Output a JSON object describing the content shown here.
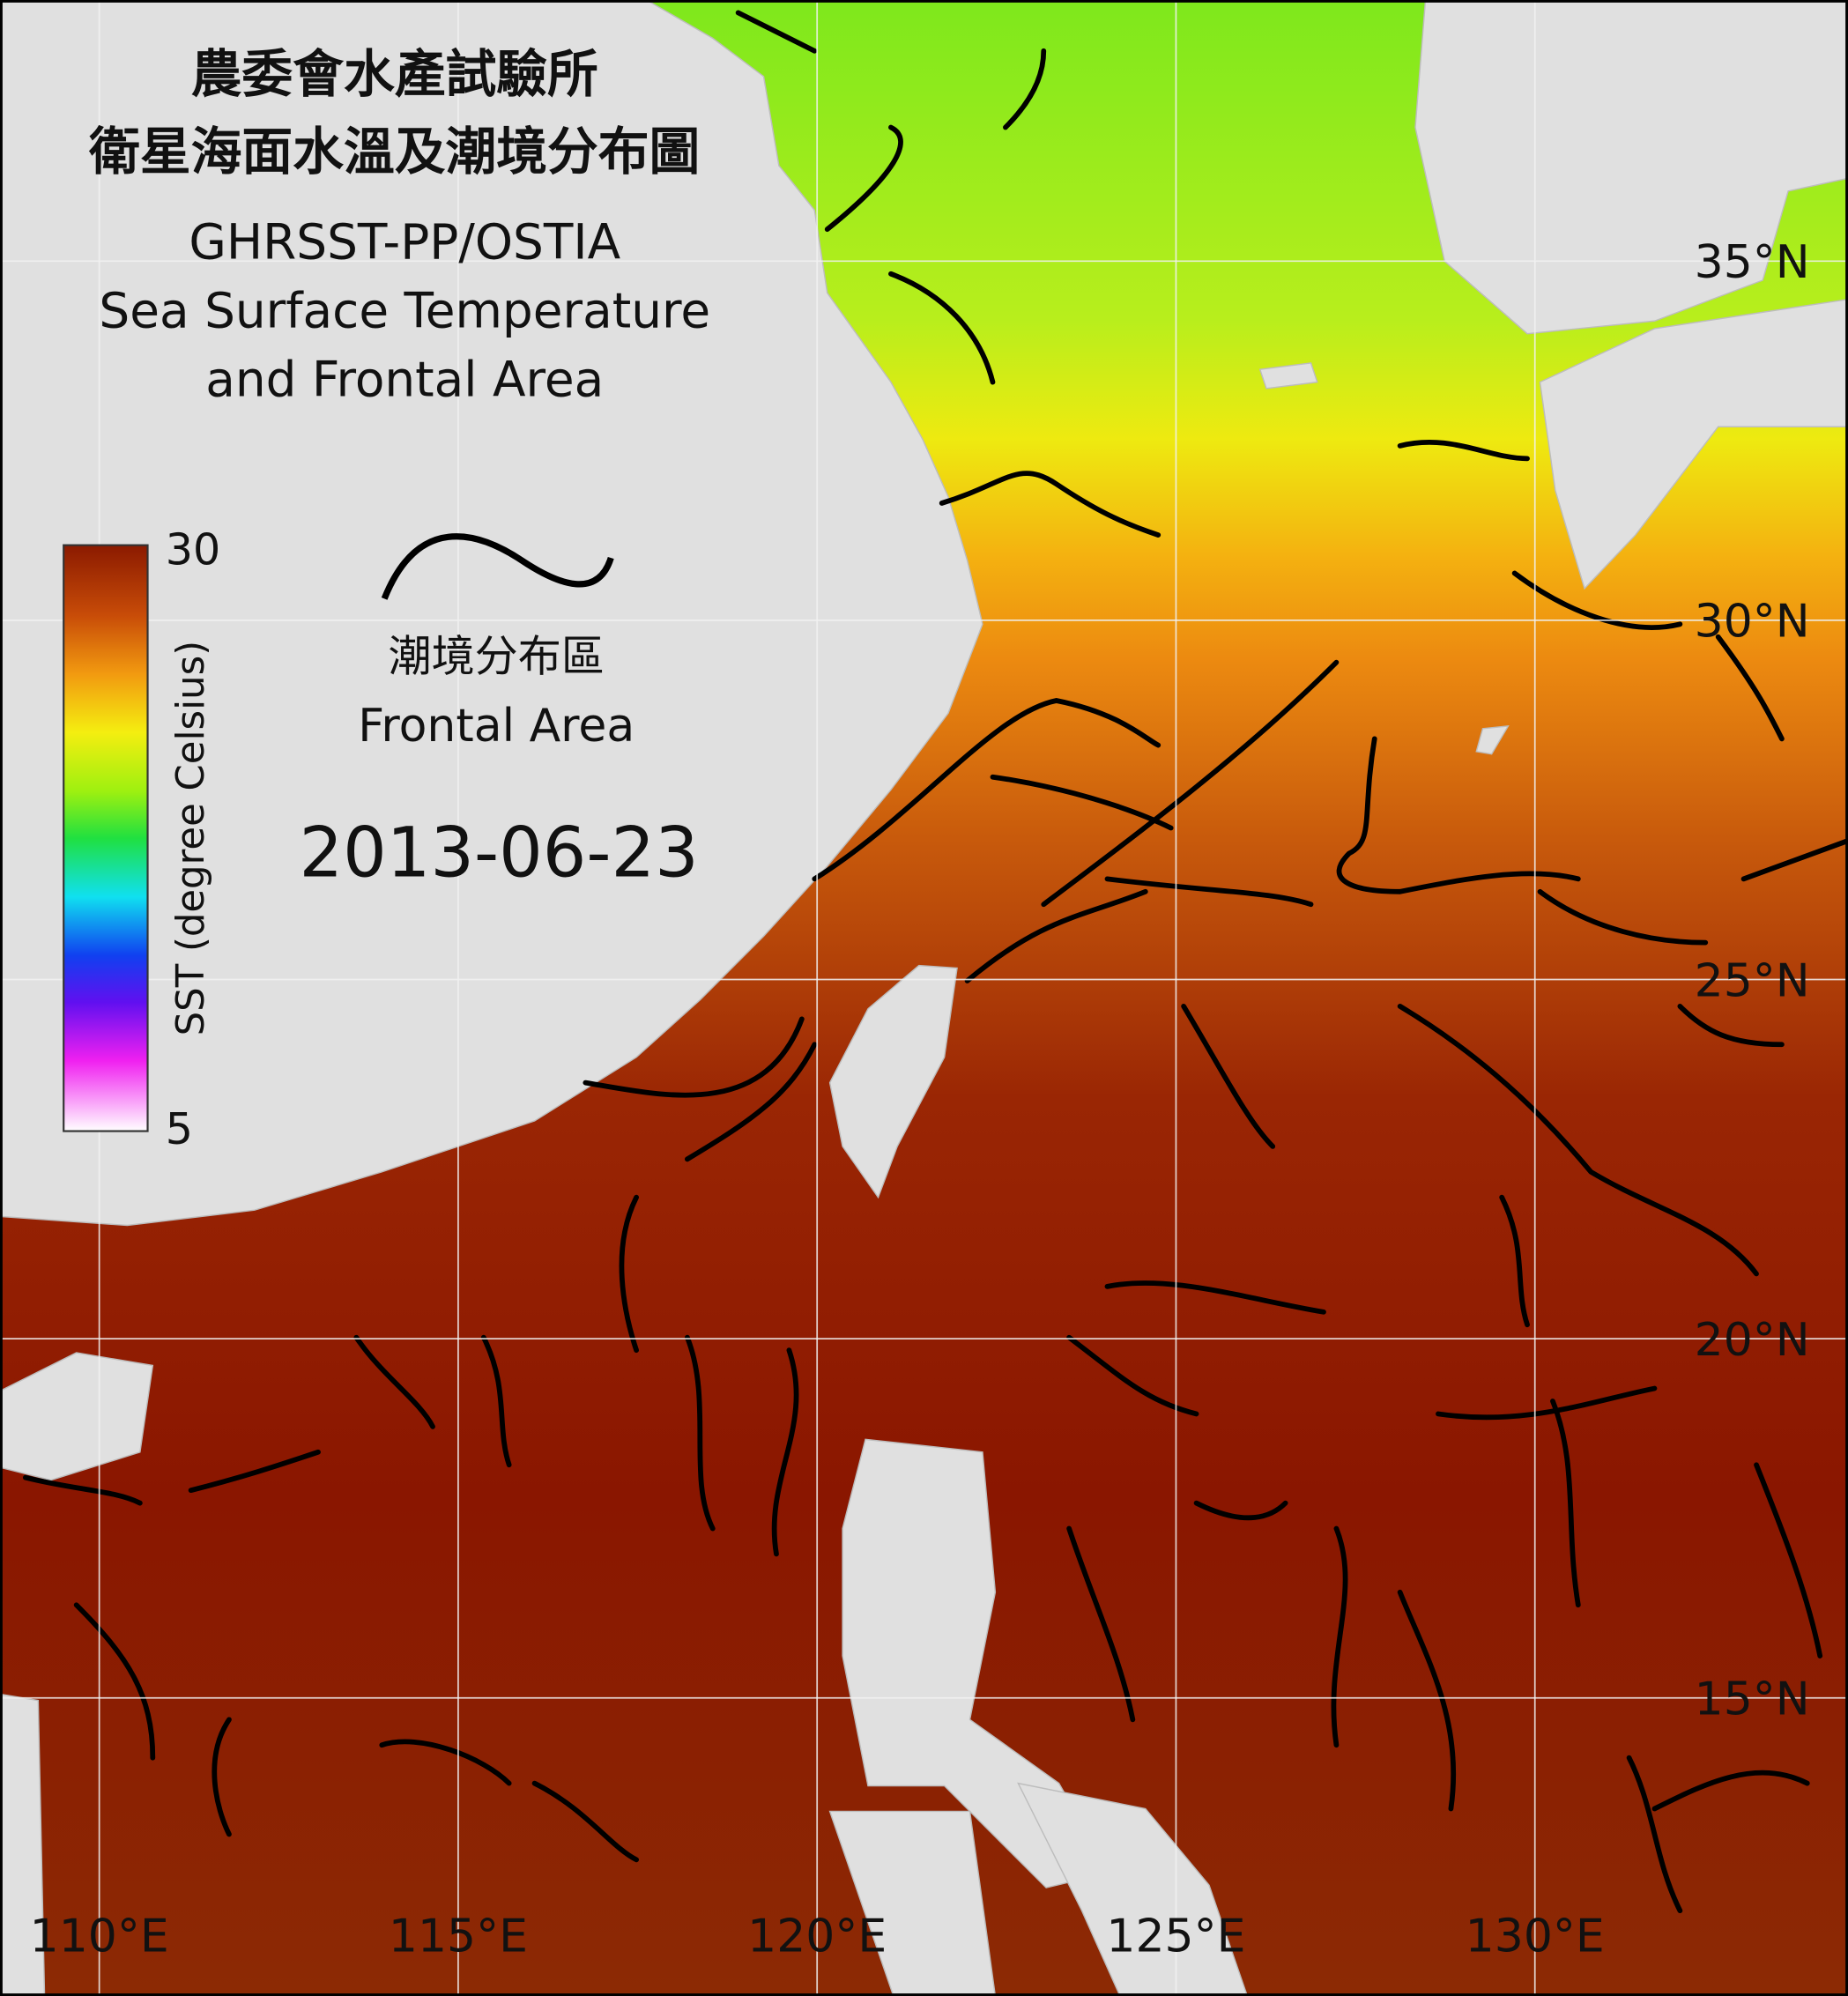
{
  "title": {
    "zh": [
      "農委會水產試驗所",
      "衛星海面水溫及潮境分布圖"
    ],
    "product": "GHRSST-PP/OSTIA",
    "en": [
      "Sea Surface Temperature",
      "and Frontal Area"
    ]
  },
  "colorbar": {
    "label": "SST (degree Celsius)",
    "max": 30,
    "min": 5
  },
  "front_legend": {
    "zh": "潮境分布區",
    "en": "Frontal Area"
  },
  "date": "2013-06-23",
  "lat_labels": [
    "35°N",
    "30°N",
    "25°N",
    "20°N",
    "15°N"
  ],
  "lon_labels": [
    "110°E",
    "115°E",
    "120°E",
    "125°E",
    "130°E"
  ]
}
